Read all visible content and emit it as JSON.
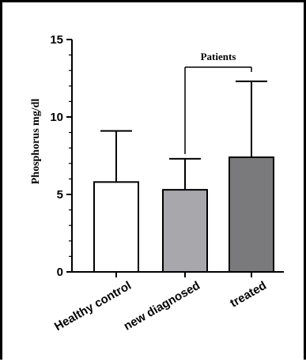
{
  "chart_data": {
    "type": "bar",
    "categories": [
      "Healthy control",
      "new diagnosed",
      "treated"
    ],
    "values": [
      5.8,
      5.3,
      7.4
    ],
    "error_upper": [
      9.1,
      7.3,
      12.3
    ],
    "bar_colors": [
      "#ffffff",
      "#a8a8ac",
      "#7a7a7c"
    ],
    "title": "",
    "xlabel": "",
    "ylabel": "Phosphorus mg/dl",
    "ylim": [
      0,
      15
    ],
    "yticks": [
      "0",
      "5",
      "10",
      "15"
    ],
    "grid": false,
    "annotation": {
      "text": "Patients",
      "spans": [
        "new diagnosed",
        "treated"
      ]
    }
  }
}
